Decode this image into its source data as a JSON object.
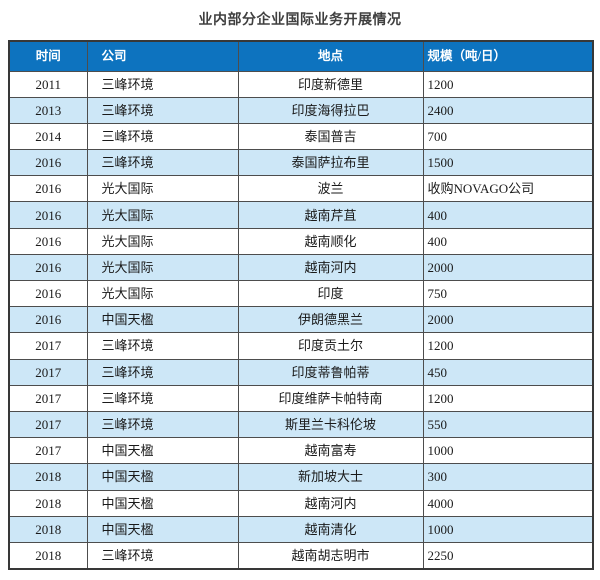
{
  "title": "业内部分企业国际业务开展情况",
  "table": {
    "headers": [
      "时间",
      "公司",
      "地点",
      "规模（吨/日）"
    ],
    "rows": [
      [
        "2011",
        "三峰环境",
        "印度新德里",
        "1200"
      ],
      [
        "2013",
        "三峰环境",
        "印度海得拉巴",
        "2400"
      ],
      [
        "2014",
        "三峰环境",
        "泰国普吉",
        "700"
      ],
      [
        "2016",
        "三峰环境",
        "泰国萨拉布里",
        "1500"
      ],
      [
        "2016",
        "光大国际",
        "波兰",
        "收购NOVAGO公司"
      ],
      [
        "2016",
        "光大国际",
        "越南芹苴",
        "400"
      ],
      [
        "2016",
        "光大国际",
        "越南顺化",
        "400"
      ],
      [
        "2016",
        "光大国际",
        "越南河内",
        "2000"
      ],
      [
        "2016",
        "光大国际",
        "印度",
        "750"
      ],
      [
        "2016",
        "中国天楹",
        "伊朗德黑兰",
        "2000"
      ],
      [
        "2017",
        "三峰环境",
        "印度贡土尔",
        "1200"
      ],
      [
        "2017",
        "三峰环境",
        "印度蒂鲁帕蒂",
        "450"
      ],
      [
        "2017",
        "三峰环境",
        "印度维萨卡帕特南",
        "1200"
      ],
      [
        "2017",
        "三峰环境",
        "斯里兰卡科伦坡",
        "550"
      ],
      [
        "2017",
        "中国天楹",
        "越南富寿",
        "1000"
      ],
      [
        "2018",
        "中国天楹",
        "新加坡大士",
        "300"
      ],
      [
        "2018",
        "中国天楹",
        "越南河内",
        "4000"
      ],
      [
        "2018",
        "中国天楹",
        "越南清化",
        "1000"
      ],
      [
        "2018",
        "三峰环境",
        "越南胡志明市",
        "2250"
      ]
    ],
    "column_names": [
      "time",
      "company",
      "location",
      "scale"
    ]
  },
  "colors": {
    "title_text": "#3f3f3f",
    "header_bg": "#0d73bf",
    "header_text": "#ffffff",
    "stripe_bg": "#cde7f7",
    "border": "#4d4d4d",
    "border_dark": "#383838",
    "cell_text": "#1a1a1a",
    "page_bg": "#ffffff"
  }
}
